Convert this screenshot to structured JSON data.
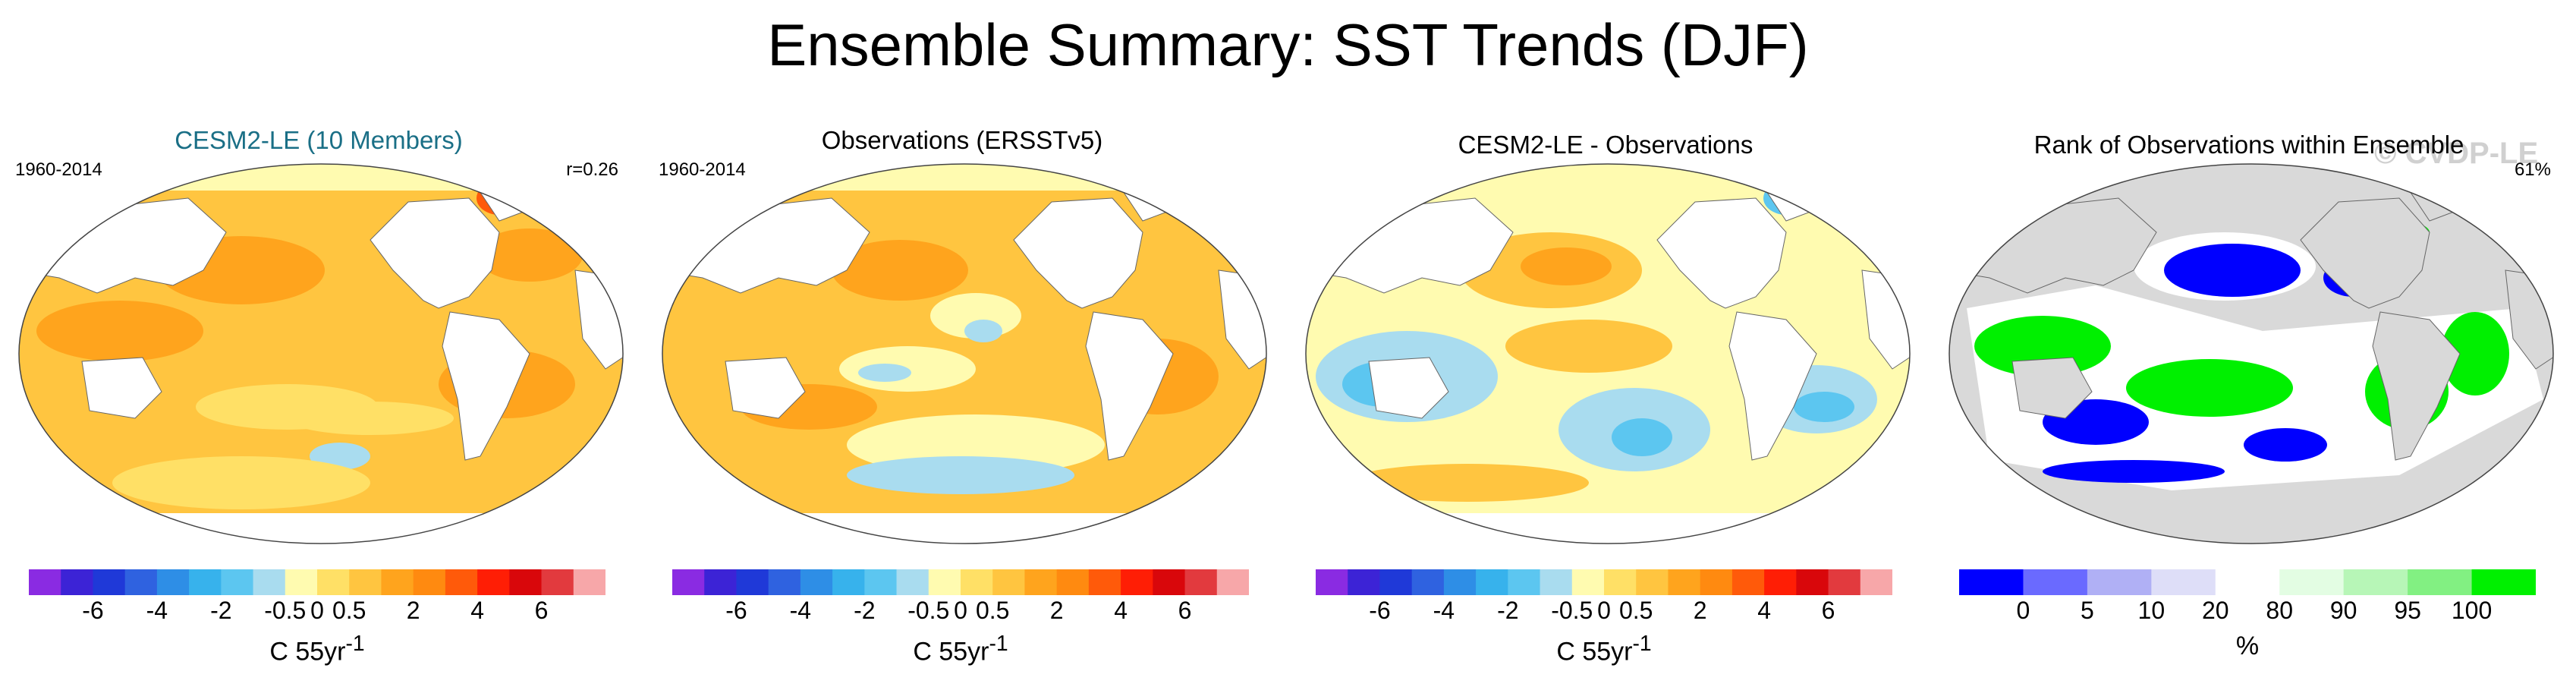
{
  "title": "Ensemble Summary: SST Trends (DJF)",
  "panels": [
    {
      "title": "CESM2-LE (10 Members)",
      "period": "1960-2014",
      "stat": "r=0.26"
    },
    {
      "title": "Observations (ERSSTv5)",
      "period": "1960-2014",
      "stat": ""
    },
    {
      "title": "CESM2-LE - Observations",
      "period": "",
      "stat": ""
    },
    {
      "title": "Rank of Observations within Ensemble",
      "period": "",
      "stat": "61%"
    }
  ],
  "watermark": "© CVDP-LE",
  "trend_colorbar": {
    "ticks": [
      "-6",
      "-4",
      "-2",
      "-0.5",
      "0",
      "0.5",
      "2",
      "4",
      "6"
    ],
    "units": "C 55yr",
    "units_sup": "-1",
    "colors": [
      "#8a2be2",
      "#3c23d6",
      "#1f39d8",
      "#2f62e0",
      "#2e8ee6",
      "#37b2ec",
      "#5cc6f0",
      "#a9dcef",
      "#fffbb0",
      "#ffe066",
      "#ffc540",
      "#ffa41d",
      "#ff8a10",
      "#ff5a0a",
      "#ff1e05",
      "#d9070b",
      "#e23a3e",
      "#f7a7a9"
    ]
  },
  "rank_colorbar": {
    "ticks": [
      "0",
      "5",
      "10",
      "20",
      "80",
      "90",
      "95",
      "100"
    ],
    "units": "%",
    "colors": [
      "#0000ff",
      "#6a6aff",
      "#b0b0f5",
      "#dedef8",
      "#ffffff",
      "#e3fde3",
      "#b7f6b7",
      "#82f082",
      "#00f000"
    ]
  }
}
